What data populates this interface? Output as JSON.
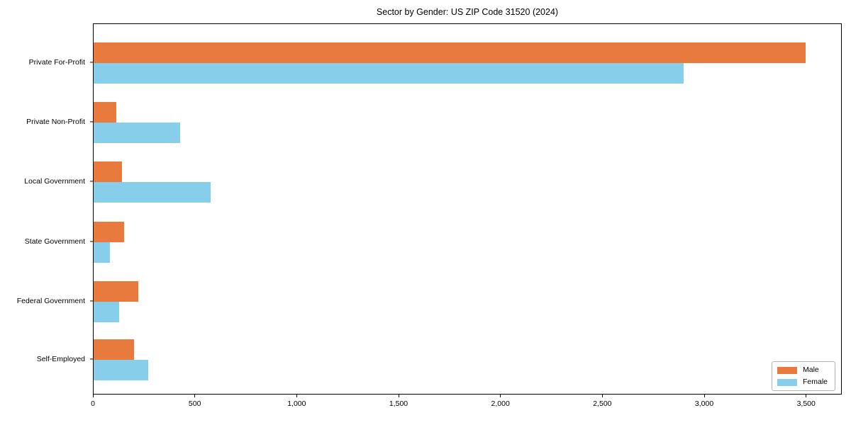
{
  "chart_data": {
    "type": "bar",
    "orientation": "horizontal",
    "title": "Sector by Gender: US ZIP Code 31520 (2024)",
    "categories": [
      "Private For-Profit",
      "Private Non-Profit",
      "Local Government",
      "State Government",
      "Federal Government",
      "Self-Employed"
    ],
    "series": [
      {
        "name": "Male",
        "color": "#E87A3D",
        "values": [
          3500,
          110,
          140,
          150,
          220,
          200
        ]
      },
      {
        "name": "Female",
        "color": "#87CEEB",
        "values": [
          2900,
          425,
          575,
          80,
          125,
          270
        ]
      }
    ],
    "xlabel": "",
    "ylabel": "",
    "xlim": [
      0,
      3675
    ],
    "x_ticks": [
      0,
      500,
      1000,
      1500,
      2000,
      2500,
      3000,
      3500
    ],
    "x_tick_labels": [
      "0",
      "500",
      "1,000",
      "1,500",
      "2,000",
      "2,500",
      "3,000",
      "3,500"
    ],
    "grid": false,
    "legend": {
      "position": "lower right"
    }
  }
}
